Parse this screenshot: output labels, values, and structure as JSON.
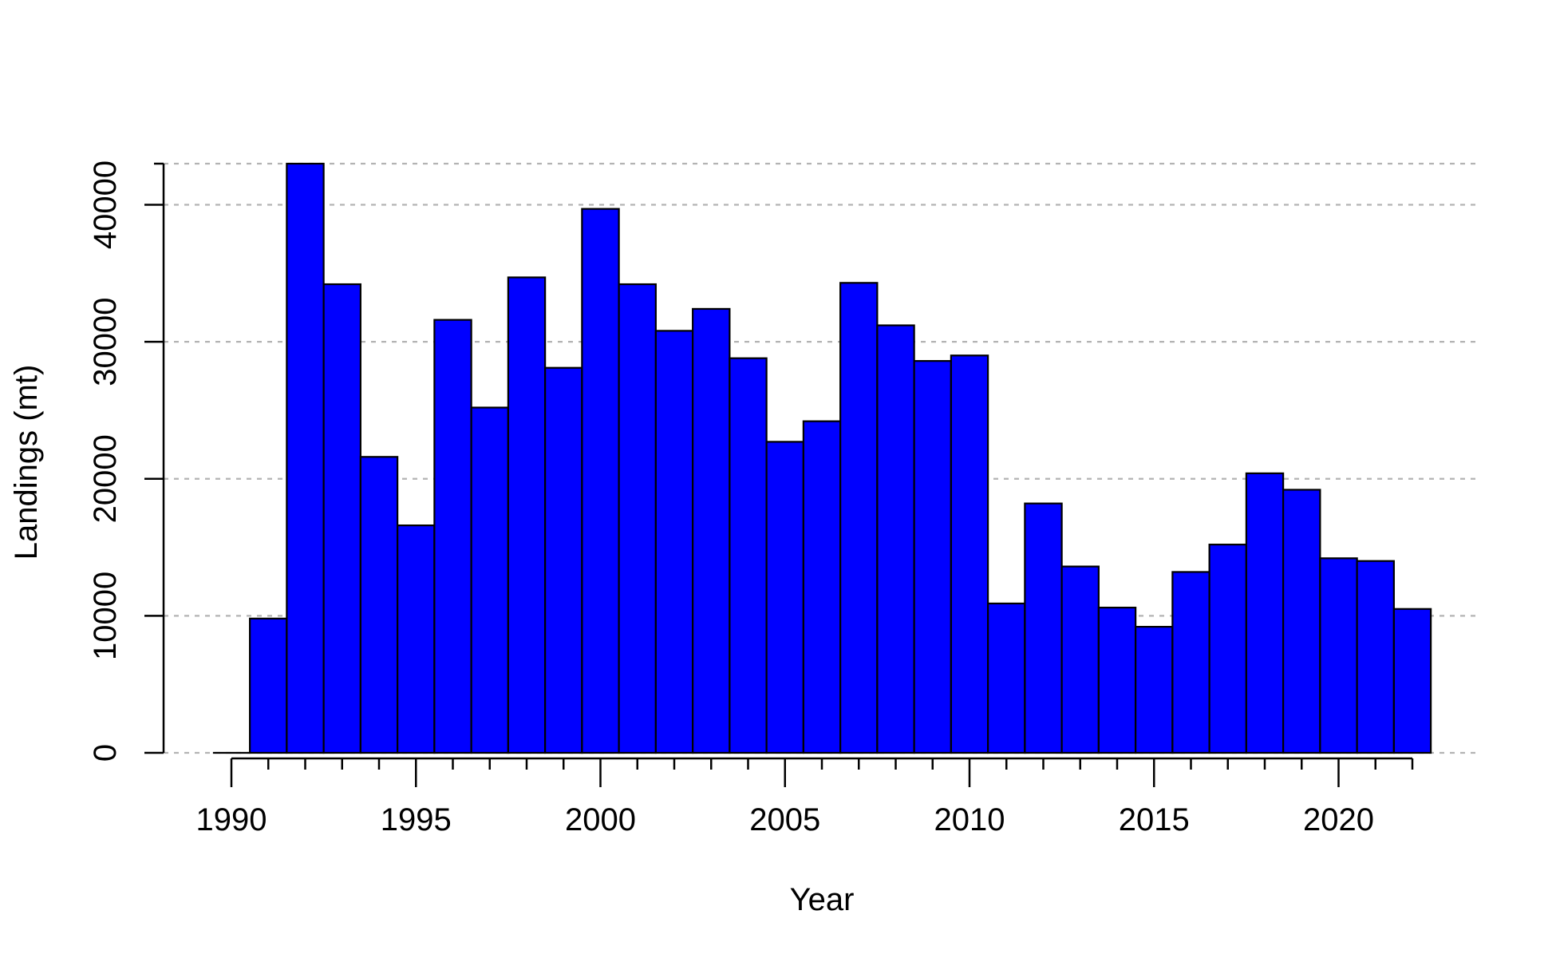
{
  "chart_data": {
    "type": "bar",
    "xlabel": "Year",
    "ylabel": "Landings (mt)",
    "bar_color": "#0000ff",
    "grid": "horizontal dashed",
    "x_ticks": [
      1990,
      1995,
      2000,
      2005,
      2010,
      2015,
      2020
    ],
    "y_ticks": [
      0,
      10000,
      20000,
      30000,
      40000
    ],
    "x_range": [
      1989.5,
      2023.0
    ],
    "ylim": [
      0,
      43000
    ],
    "x": [
      1990,
      1991,
      1992,
      1993,
      1994,
      1995,
      1996,
      1997,
      1998,
      1999,
      2000,
      2001,
      2002,
      2003,
      2004,
      2005,
      2006,
      2007,
      2008,
      2009,
      2010,
      2011,
      2012,
      2013,
      2014,
      2015,
      2016,
      2017,
      2018,
      2019,
      2020,
      2021,
      2022
    ],
    "values": [
      0,
      9800,
      43000,
      34200,
      21600,
      16600,
      31600,
      25200,
      34700,
      28100,
      39700,
      34200,
      30800,
      32400,
      28800,
      22700,
      24200,
      34300,
      31200,
      28600,
      29000,
      10900,
      18200,
      13600,
      10600,
      9200,
      13200,
      15200,
      20400,
      19200,
      14200,
      14000,
      10500
    ]
  }
}
